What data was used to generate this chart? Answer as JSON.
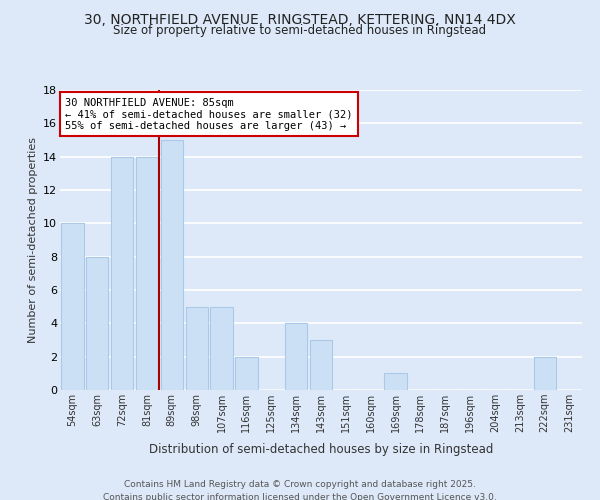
{
  "title_line1": "30, NORTHFIELD AVENUE, RINGSTEAD, KETTERING, NN14 4DX",
  "title_line2": "Size of property relative to semi-detached houses in Ringstead",
  "xlabel": "Distribution of semi-detached houses by size in Ringstead",
  "ylabel": "Number of semi-detached properties",
  "categories": [
    "54sqm",
    "63sqm",
    "72sqm",
    "81sqm",
    "89sqm",
    "98sqm",
    "107sqm",
    "116sqm",
    "125sqm",
    "134sqm",
    "143sqm",
    "151sqm",
    "160sqm",
    "169sqm",
    "178sqm",
    "187sqm",
    "196sqm",
    "204sqm",
    "213sqm",
    "222sqm",
    "231sqm"
  ],
  "values": [
    10,
    8,
    14,
    14,
    15,
    5,
    5,
    2,
    0,
    4,
    3,
    0,
    0,
    1,
    0,
    0,
    0,
    0,
    0,
    2,
    0
  ],
  "bar_color": "#cce0f5",
  "bar_edgecolor": "#aac8e8",
  "property_line_x": 3.5,
  "property_label": "30 NORTHFIELD AVENUE: 85sqm",
  "annotation_line1": "← 41% of semi-detached houses are smaller (32)",
  "annotation_line2": "55% of semi-detached houses are larger (43) →",
  "ylim": [
    0,
    18
  ],
  "yticks": [
    0,
    2,
    4,
    6,
    8,
    10,
    12,
    14,
    16,
    18
  ],
  "background_color": "#dde9f8",
  "grid_color": "#ffffff",
  "footer_line1": "Contains HM Land Registry data © Crown copyright and database right 2025.",
  "footer_line2": "Contains public sector information licensed under the Open Government Licence v3.0."
}
